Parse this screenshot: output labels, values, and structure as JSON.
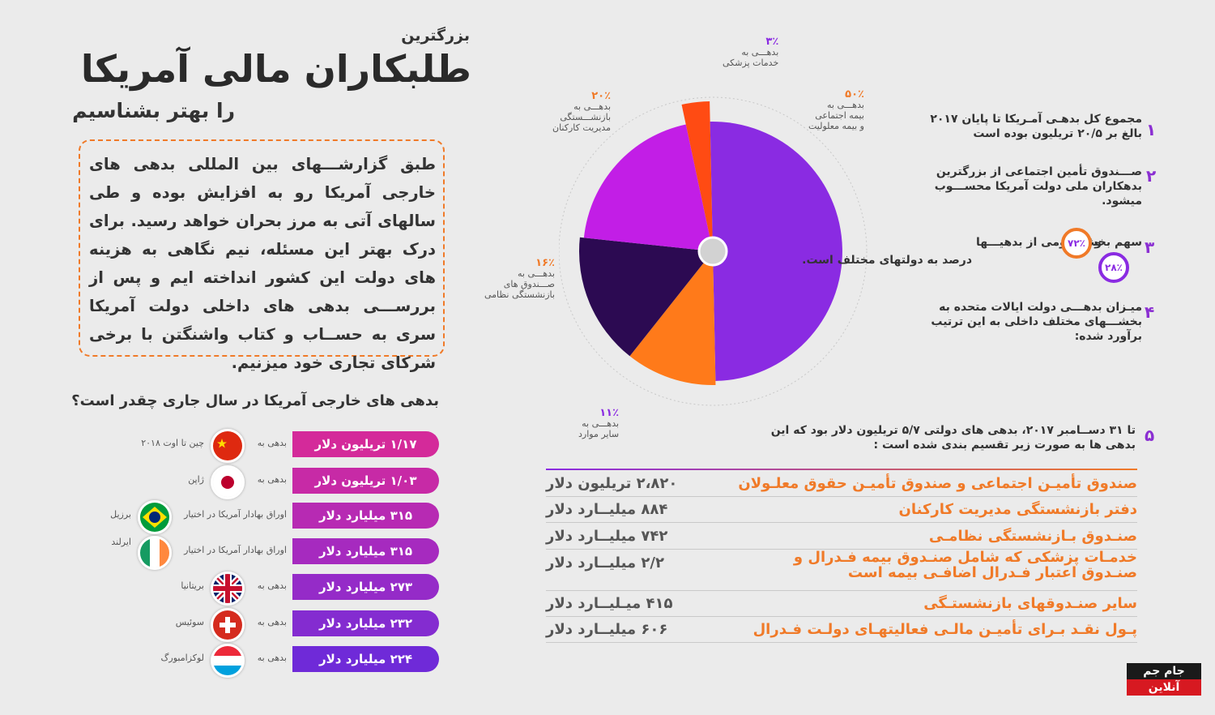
{
  "title": {
    "small": "بزرگترین",
    "main": "طلبکاران مالی آمریکا",
    "sub": "را بهتر بشناسیم"
  },
  "intro": "طبق گزارشـــهای بین المللی بدهی های خارجی آمریکا رو به افزایش بوده و طی سالهای آتی به مرز بحران خواهد رسید. برای درک بهتر این مسئله، نیم نگاهی به هزینه های دولت این کشور انداخته ایم و پس از بررســـی بدهی های داخلی دولت آمریکا سری به حســاب و کتاب واشنگتن با برخی شرکای تجاری خود میزنیم.",
  "foreign": {
    "question": "بدهی های خارجی آمریکا در سال جاری چقدر است؟",
    "rows": [
      {
        "amount": "۱/۱۷ تریلیون دلار",
        "prefix": "بدهی به",
        "country": "چین تا اوت ۲۰۱۸",
        "flag": "china",
        "color": "#d42a9a"
      },
      {
        "amount": "۱/۰۳ تریلیون دلار",
        "prefix": "بدهی به",
        "country": "ژاپن",
        "flag": "japan",
        "color": "#c72aa6"
      },
      {
        "amount": "۳۱۵ میلیارد دلار",
        "prefix": "اوراق بهادار آمریکا در اختیار",
        "country": "برزیل",
        "flag": "brazil",
        "color": "#b72ab3"
      },
      {
        "amount": "۳۱۵ میلیارد دلار",
        "prefix": "اوراق بهادار آمریکا در اختیار",
        "country": "ایرلند",
        "flag": "ireland",
        "color": "#a62abf"
      },
      {
        "amount": "۲۷۳ میلیارد دلار",
        "prefix": "بدهی به",
        "country": "بریتانیا",
        "flag": "uk",
        "color": "#952bc8"
      },
      {
        "amount": "۲۳۲ میلیارد دلار",
        "prefix": "بدهی به",
        "country": "سوئیس",
        "flag": "swiss",
        "color": "#842cd0"
      },
      {
        "amount": "۲۲۴ میلیارد دلار",
        "prefix": "بدهی به",
        "country": "لوکزامبورگ",
        "flag": "lux",
        "color": "#6f2ad8"
      }
    ]
  },
  "chart_data": {
    "type": "pie",
    "title": "",
    "slices": [
      {
        "pct": "۳٪",
        "value": 3,
        "l1": "بدهـــی به",
        "l2": "خدمات پزشکی",
        "color": "#ff4b13"
      },
      {
        "pct": "۵۰٪",
        "value": 50,
        "l1": "بدهـــی به",
        "l2": "بیمه اجتماعی",
        "l3": "و بیمه معلولیت",
        "color": "#8a2be2"
      },
      {
        "pct": "۱۱٪",
        "value": 11,
        "l1": "بدهـــی به",
        "l2": "سایر موارد",
        "color": "#ff7a1a"
      },
      {
        "pct": "۱۶٪",
        "value": 16,
        "l1": "بدهـــی به",
        "l2": "صـــندوق های",
        "l3": "بازنشستگی نظامی",
        "color": "#2c0a52"
      },
      {
        "pct": "۲۰٪",
        "value": 20,
        "l1": "بدهـــی به",
        "l2": "بازنشـــستگی",
        "l3": "مدیریت کارکنان",
        "color": "#c21ee6"
      }
    ]
  },
  "facts": [
    {
      "num": "۱",
      "text": "مجموع کل بدهـی آمـریکا تا پایان ۲۰۱۷ بالغ بر ۲۰/۵ تریلیون بوده است"
    },
    {
      "num": "۲",
      "text": "صـــندوق تأمین اجتماعی از بزرگترین بدهکاران ملی دولت آمریکا محســـوب میشود."
    },
    {
      "num": "۳",
      "text1": "سهم بخش عـومی از بدهیـــها",
      "badge1": "۷۲٪",
      "mid": "و",
      "badge2": "۲۸٪",
      "text2": "درصد به دولتهای مختلف است."
    },
    {
      "num": "۴",
      "text": "میـزان بدهـــی دولت ایالات متحده به بخشـــهای مختلف داخلی به این ترتیب برآورد شده:"
    },
    {
      "num": "۵",
      "text": "تا ۳۱ دســامبر ۲۰۱۷، بدهی های دولتی ۵/۷ تریلیون دلار بود که این بدهی ها به صورت زیر تقسیم بندی شده است :"
    }
  ],
  "table": [
    {
      "label": "صندوق تأمیـن اجتماعی و صندوق تأمیـن حقوق معلـولان",
      "value": "۲،۸۲۰ تریلیون دلار"
    },
    {
      "label": "دفتر بازنشستگی مدیریت کارکنان",
      "value": "۸۸۴ میلیــارد دلار"
    },
    {
      "label": "صنـدوق بـازنشستگی نظامـی",
      "value": "۷۴۲ میلیــارد دلار"
    },
    {
      "label": "خدمـات پزشکی که شامل صنـدوق بیمه فـدرال و صنـدوق اعتبار فـدرال اضافـی بیمه است",
      "value": "۲/۲ میلیــارد دلار"
    },
    {
      "label": "سایر صنـدوقهای بازنشستـگی",
      "value": "۴۱۵ میـلیــارد دلار"
    },
    {
      "label": "پـول نقـد بـرای تأمیـن مالـی فعالیتهـای دولـت فـدرال",
      "value": "۶۰۶ میلیــارد دلار"
    }
  ],
  "logo": {
    "line1": "جام جم",
    "line2": "آنلاین"
  }
}
